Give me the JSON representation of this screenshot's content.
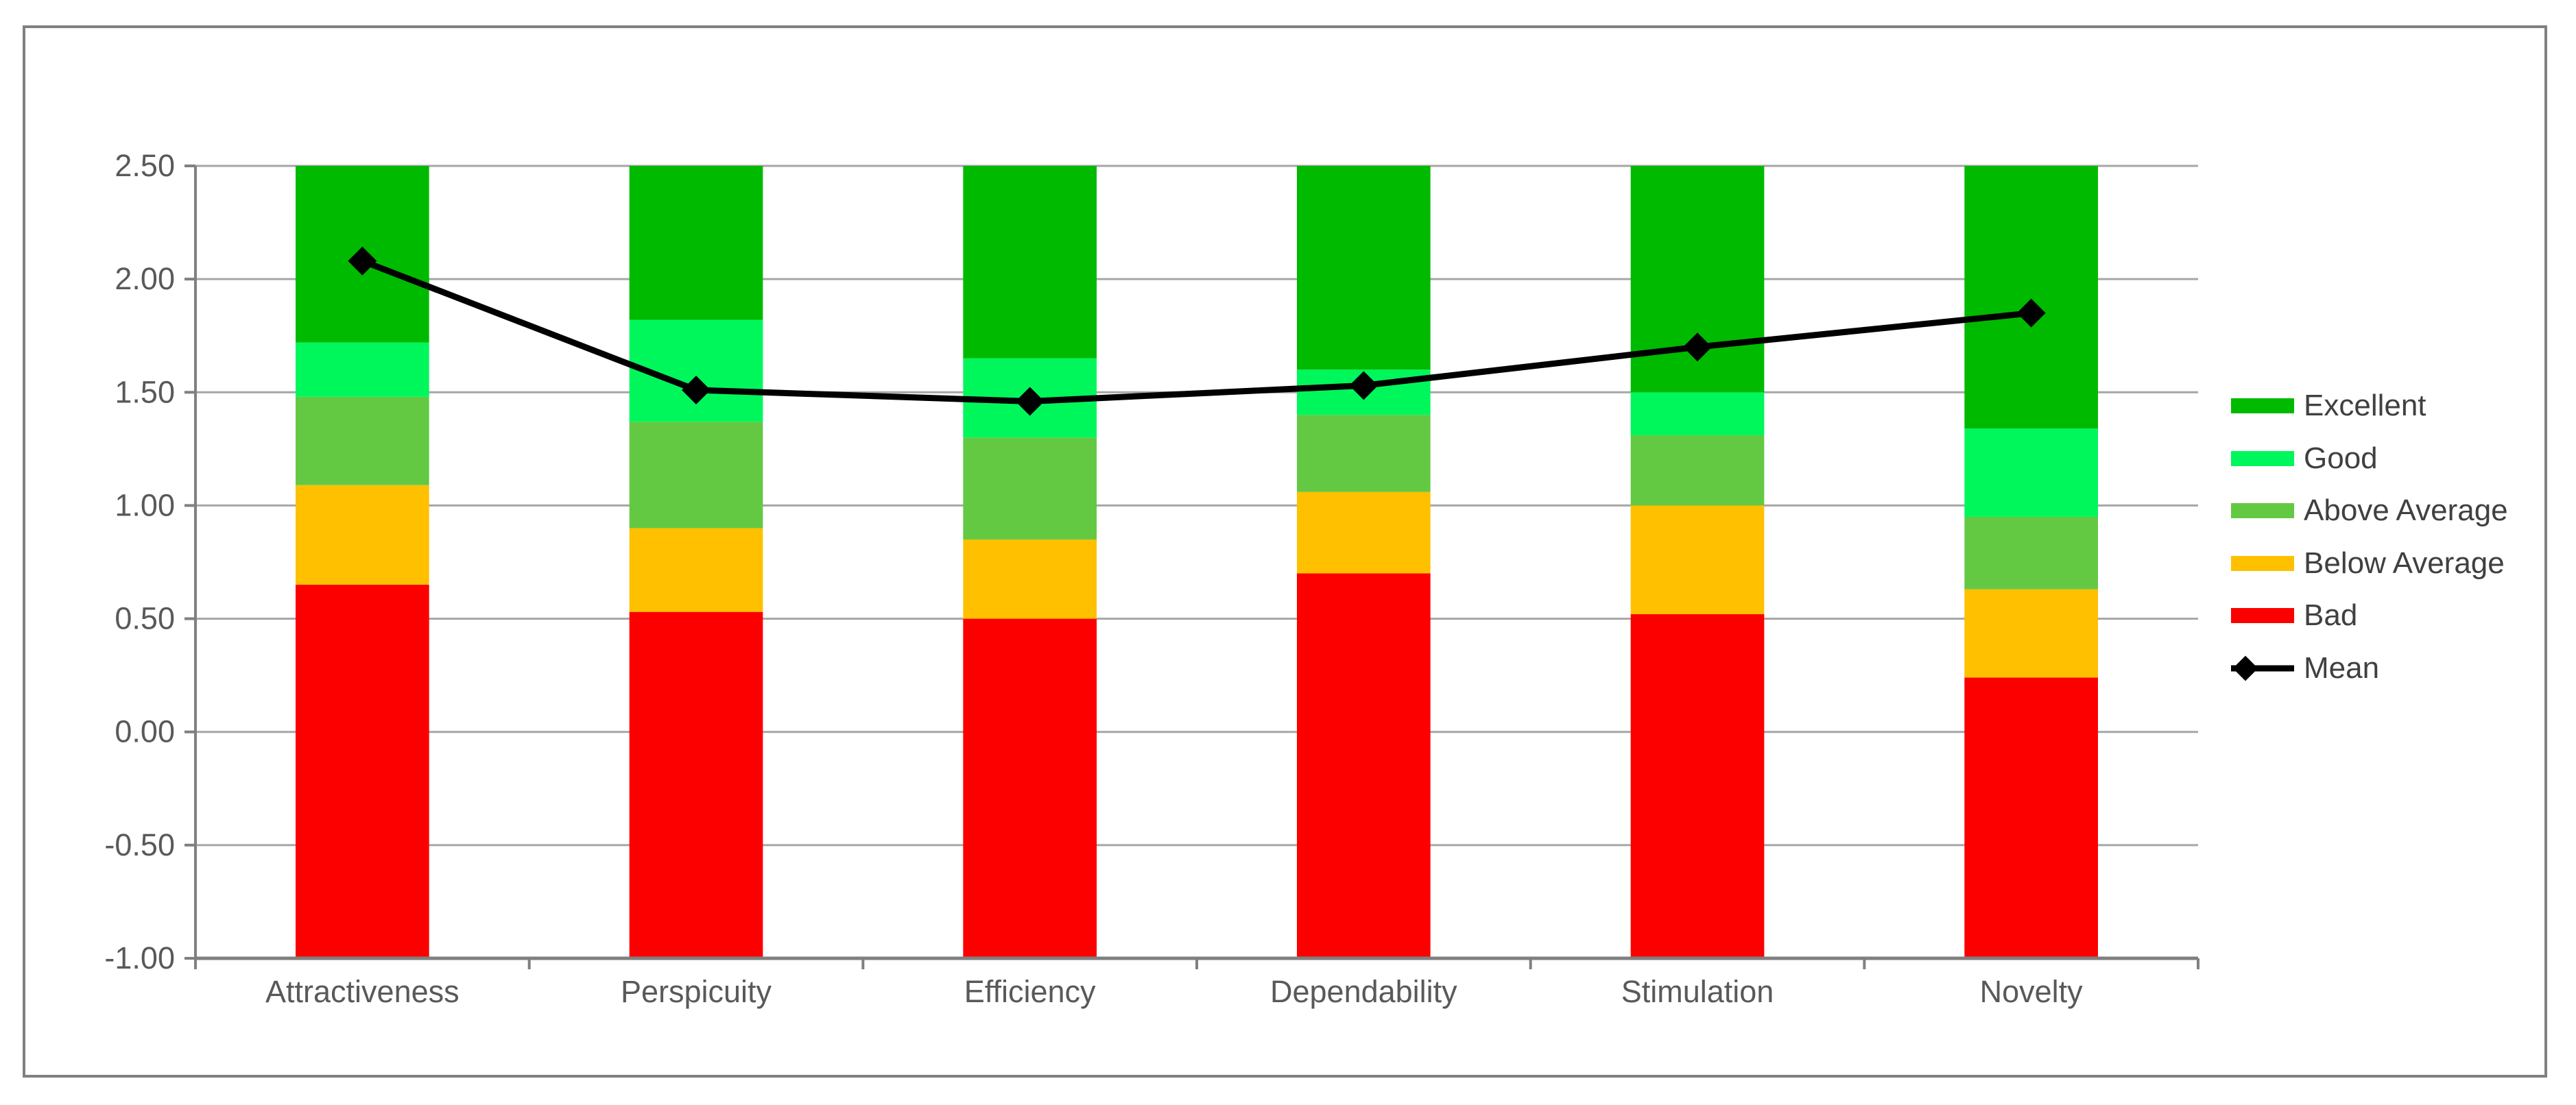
{
  "chart_data": {
    "type": "bar",
    "subtype": "stacked-bar-with-line",
    "title": "",
    "categories": [
      "Attractiveness",
      "Perspicuity",
      "Efficiency",
      "Dependability",
      "Stimulation",
      "Novelty"
    ],
    "y_axis": {
      "min": -1.0,
      "max": 2.5,
      "step": 0.5,
      "tick_labels": [
        "2.50",
        "2.00",
        "1.50",
        "1.00",
        "0.50",
        "0.00",
        "-0.50",
        "-1.00"
      ],
      "grid": true
    },
    "stack_baseline": -1.0,
    "stack_top": 2.5,
    "bands": [
      {
        "name": "Bad",
        "color": "#FC0000",
        "top": [
          0.65,
          0.53,
          0.5,
          0.7,
          0.52,
          0.24
        ]
      },
      {
        "name": "Below Average",
        "color": "#FFC000",
        "top": [
          1.09,
          0.9,
          0.85,
          1.06,
          1.0,
          0.63
        ]
      },
      {
        "name": "Above Average",
        "color": "#63C943",
        "top": [
          1.48,
          1.37,
          1.3,
          1.4,
          1.31,
          0.95
        ]
      },
      {
        "name": "Good",
        "color": "#00F75C",
        "top": [
          1.72,
          1.82,
          1.65,
          1.6,
          1.5,
          1.34
        ]
      },
      {
        "name": "Excellent",
        "color": "#00BA00",
        "top": [
          2.5,
          2.5,
          2.5,
          2.5,
          2.5,
          2.5
        ]
      }
    ],
    "line_series": {
      "name": "Mean",
      "color": "#000000",
      "marker": "diamond",
      "values": [
        2.08,
        1.51,
        1.46,
        1.53,
        1.7,
        1.85
      ]
    },
    "legend": [
      {
        "label": "Excellent",
        "color": "#00BA00",
        "glyph": "band"
      },
      {
        "label": "Good",
        "color": "#00F75C",
        "glyph": "band"
      },
      {
        "label": "Above Average",
        "color": "#63C943",
        "glyph": "band"
      },
      {
        "label": "Below Average",
        "color": "#FFC000",
        "glyph": "band"
      },
      {
        "label": "Bad",
        "color": "#FC0000",
        "glyph": "band"
      },
      {
        "label": "Mean",
        "color": "#000000",
        "glyph": "line-diamond"
      }
    ],
    "legend_position": "right"
  }
}
